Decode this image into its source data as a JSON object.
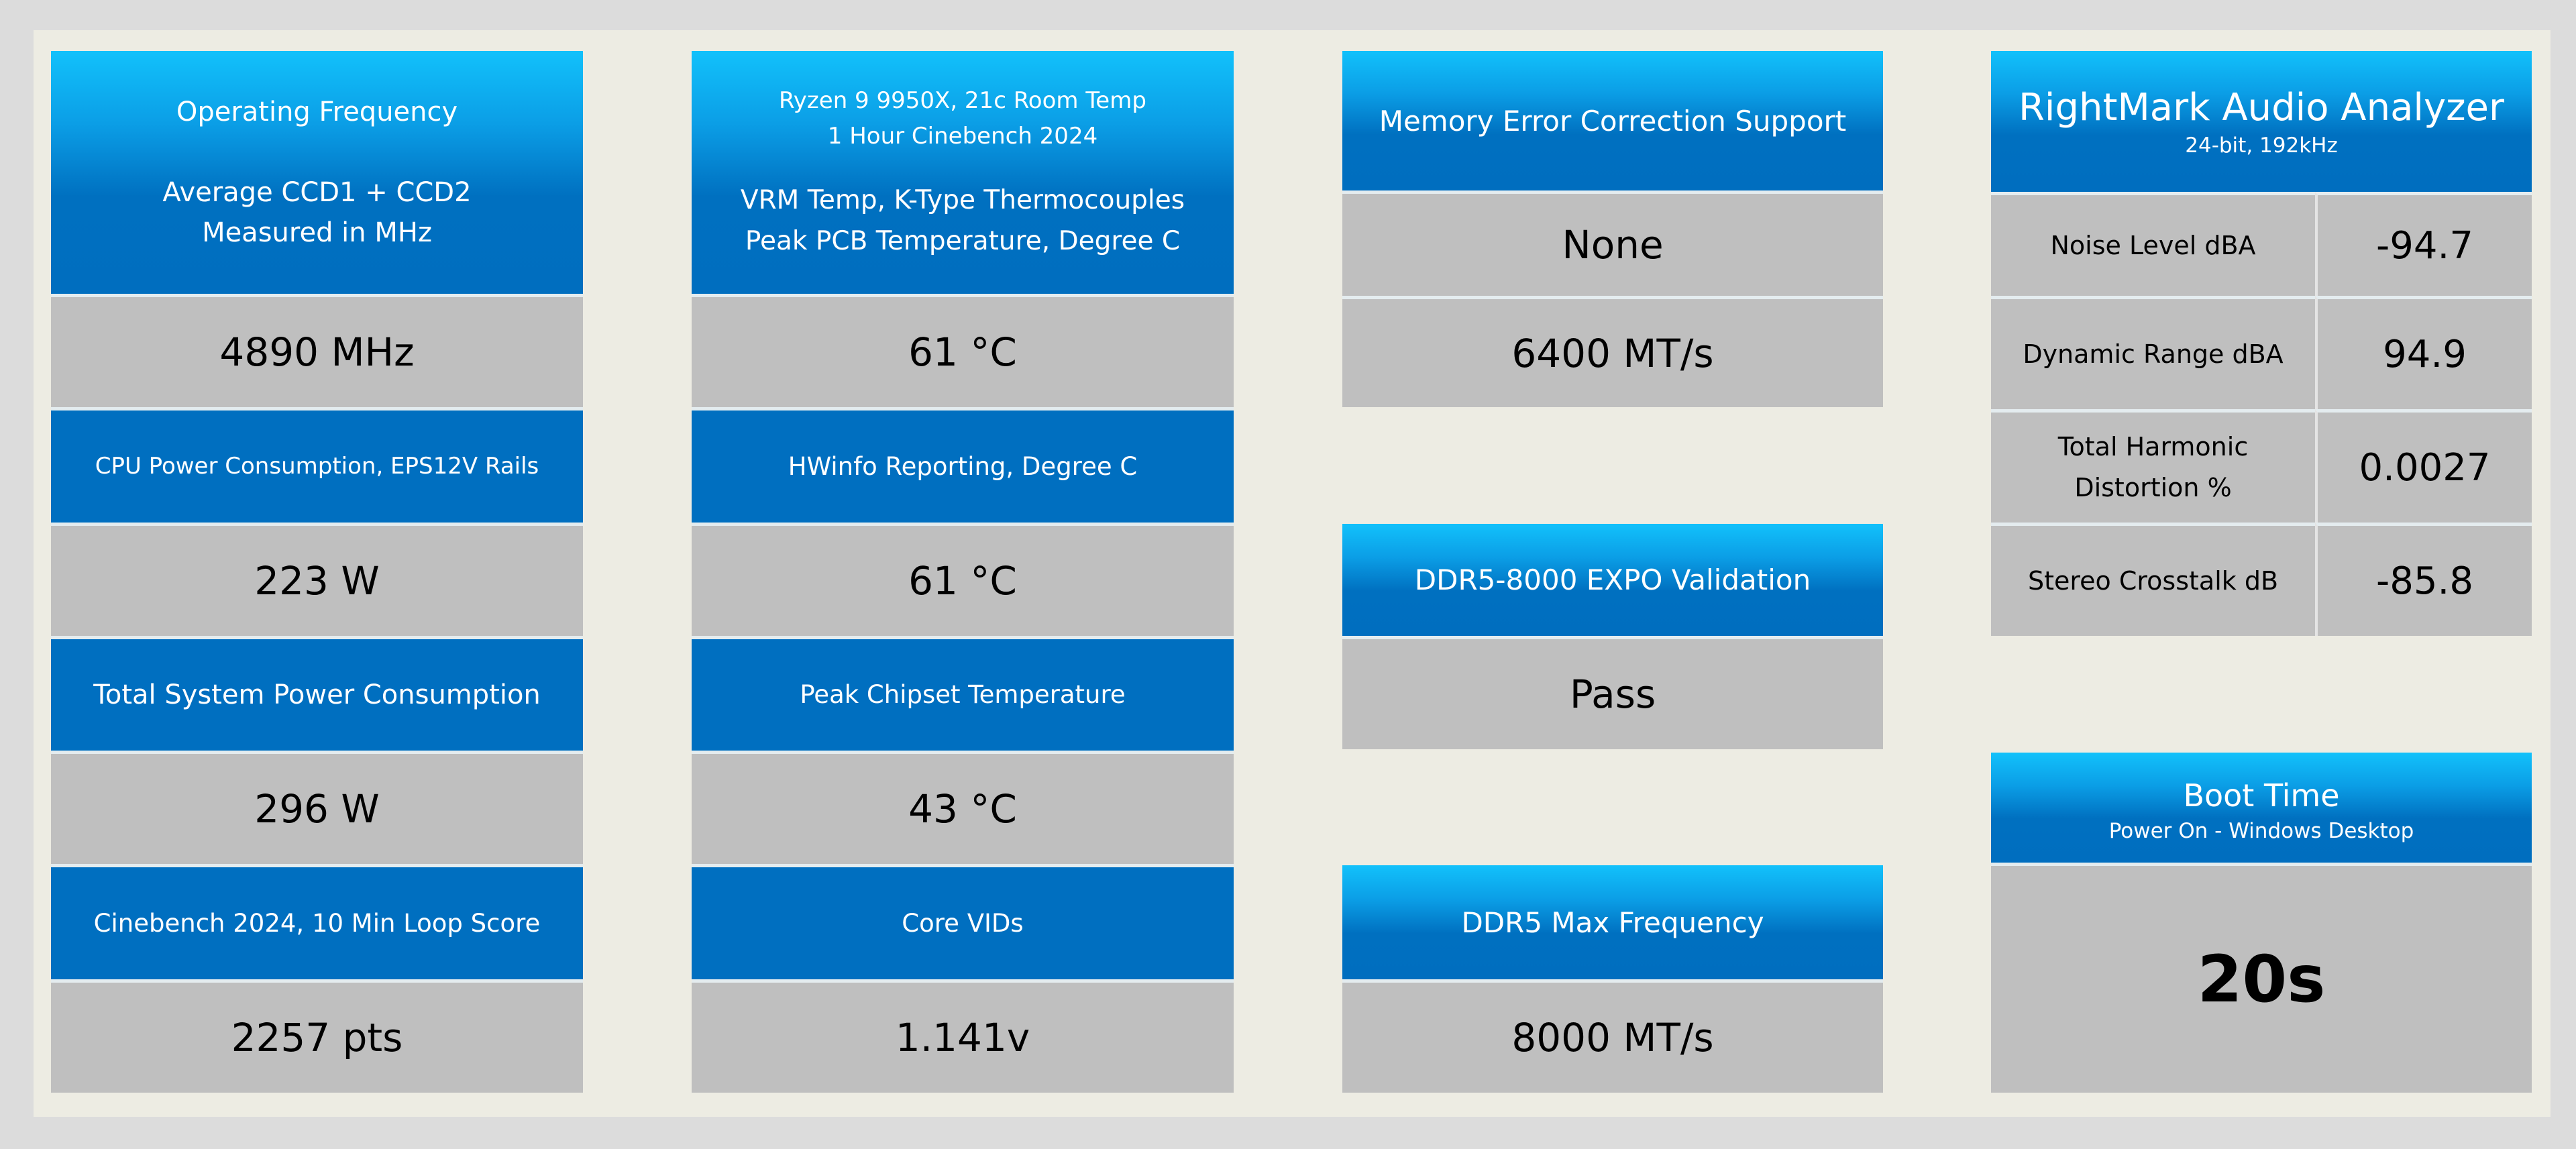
{
  "col1": {
    "header": {
      "title": "Operating Frequency",
      "line1": "Average CCD1 + CCD2",
      "line2": "Measured in MHz"
    },
    "value1": "4890 MHz",
    "header2": "CPU Power Consumption, EPS12V Rails",
    "value2": "223 W",
    "header3": "Total System Power Consumption",
    "value3": "296 W",
    "header4": "Cinebench 2024, 10 Min Loop Score",
    "value4": "2257 pts"
  },
  "col2": {
    "header": {
      "line1": "Ryzen 9 9950X, 21c Room Temp",
      "line2": "1 Hour Cinebench 2024",
      "line3": "VRM Temp, K-Type Thermocouples",
      "line4": "Peak PCB Temperature, Degree C"
    },
    "value1": "61 °C",
    "header2": "HWinfo Reporting, Degree C",
    "value2": "61 °C",
    "header3": "Peak Chipset Temperature",
    "value3": "43 °C",
    "header4": "Core VIDs",
    "value4": "1.141v"
  },
  "col3": {
    "ecc": {
      "title": "Memory Error Correction Support",
      "value1": "None",
      "value2": "6400 MT/s"
    },
    "expo": {
      "title": "DDR5-8000 EXPO Validation",
      "value": "Pass"
    },
    "maxfreq": {
      "title": "DDR5 Max Frequency",
      "value": "8000 MT/s"
    }
  },
  "col4": {
    "audio": {
      "title": "RightMark Audio Analyzer",
      "subtitle": "24-bit, 192kHz",
      "rows": [
        {
          "label": "Noise Level dBA",
          "value": "-94.7"
        },
        {
          "label": "Dynamic Range dBA",
          "value": "94.9"
        },
        {
          "label_line1": "Total Harmonic",
          "label_line2": "Distortion %",
          "value": "0.0027"
        },
        {
          "label": "Stereo Crosstalk dB",
          "value": "-85.8"
        }
      ]
    },
    "boot": {
      "title": "Boot Time",
      "subtitle": "Power On - Windows Desktop",
      "value": "20s"
    }
  },
  "colors": {
    "header_gradient_top": "#12c1fb",
    "header_blue": "#006fc0",
    "value_gray": "#bfbfbf",
    "panel_bg": "#edece3"
  }
}
